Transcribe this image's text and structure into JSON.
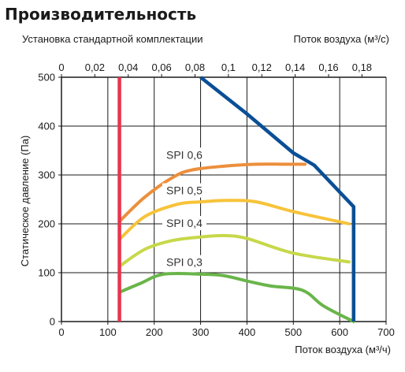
{
  "chart_data": {
    "type": "line",
    "title": "Производительность",
    "subtitle": "Установка стандартной комплектации",
    "xlabel": "Поток воздуха (м³/ч)",
    "x2label": "Поток воздуха (м³/с)",
    "ylabel": "Статическое давление (Па)",
    "xlim": [
      0,
      700
    ],
    "ylim": [
      0,
      500
    ],
    "x_ticks": [
      "0",
      "100",
      "200",
      "300",
      "400",
      "500",
      "600",
      "700"
    ],
    "y_ticks": [
      "0",
      "100",
      "200",
      "300",
      "400",
      "500"
    ],
    "x2_ticks": [
      "0",
      "0,02",
      "0,04",
      "0,06",
      "0,08",
      "0,1",
      "0,12",
      "0,14",
      "0,16",
      "0,18"
    ],
    "grid": true,
    "min_flow_line": {
      "x": 125,
      "color": "#e8344e"
    },
    "max_curve": {
      "color": "#0a4f96",
      "x": [
        300,
        400,
        500,
        545,
        630,
        630
      ],
      "y": [
        500,
        425,
        345,
        320,
        235,
        0
      ]
    },
    "series": [
      {
        "name": "SPI 0,6",
        "color": "#ec8f3c",
        "x": [
          125,
          180,
          240,
          280,
          350,
          420,
          480,
          525
        ],
        "y": [
          205,
          255,
          295,
          310,
          318,
          322,
          322,
          322
        ]
      },
      {
        "name": "SPI 0,5",
        "color": "#f7c33a",
        "x": [
          125,
          180,
          250,
          300,
          360,
          420,
          500,
          620
        ],
        "y": [
          168,
          215,
          240,
          245,
          248,
          245,
          225,
          200
        ]
      },
      {
        "name": "SPI 0,4",
        "color": "#c7d84a",
        "x": [
          125,
          180,
          240,
          300,
          350,
          400,
          500,
          620
        ],
        "y": [
          113,
          148,
          166,
          173,
          176,
          170,
          140,
          122
        ]
      },
      {
        "name": "SPI 0,3",
        "color": "#6ab54a",
        "x": [
          125,
          170,
          220,
          300,
          350,
          400,
          450,
          520,
          565,
          630
        ],
        "y": [
          60,
          78,
          97,
          97,
          94,
          83,
          73,
          64,
          32,
          0
        ]
      }
    ],
    "annotations": [
      {
        "text": "SPI 0,6",
        "x": 265,
        "y": 335
      },
      {
        "text": "SPI 0,5",
        "x": 265,
        "y": 262
      },
      {
        "text": "SPI 0,4",
        "x": 265,
        "y": 195
      },
      {
        "text": "SPI 0,3",
        "x": 265,
        "y": 115
      }
    ]
  }
}
